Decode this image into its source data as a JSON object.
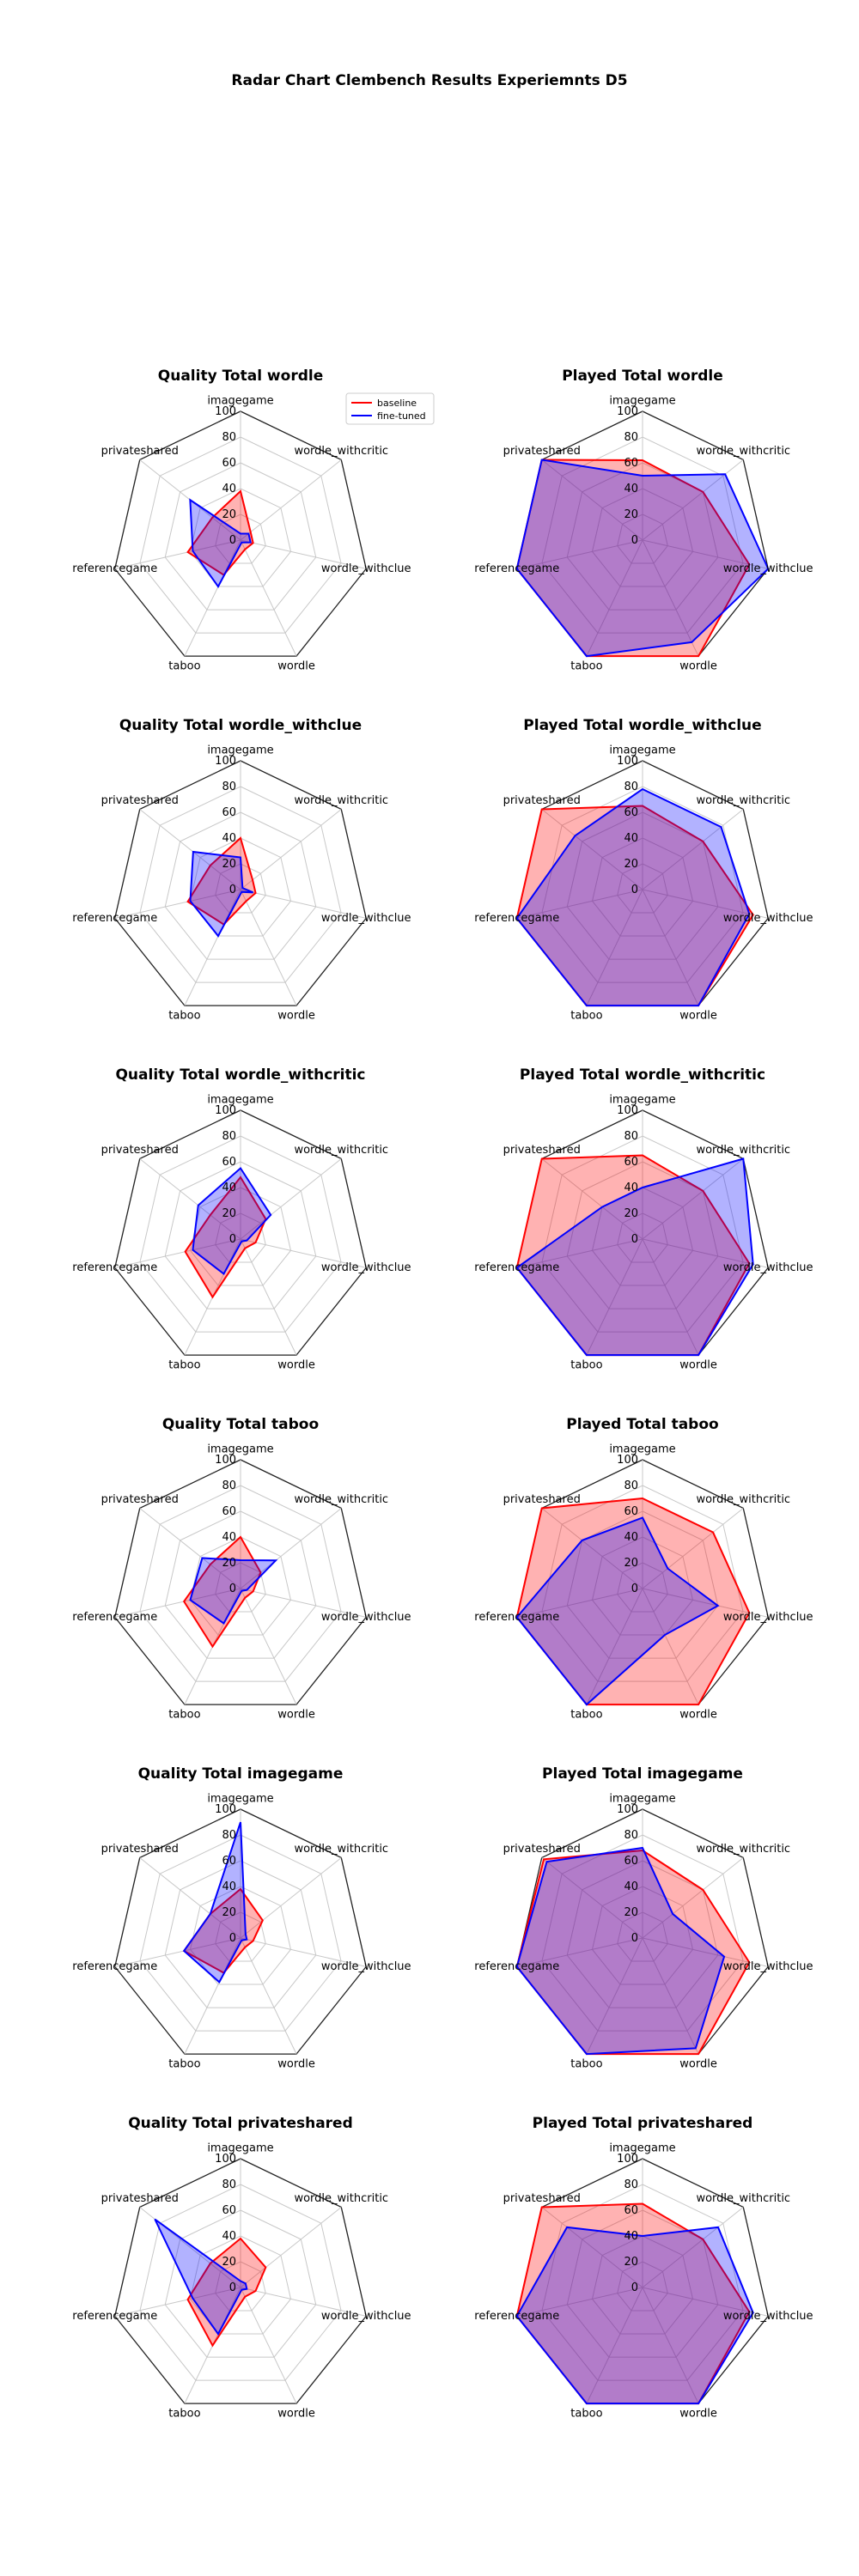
{
  "suptitle": "Radar Chart Clembench Results Experiemnts D5",
  "legend": [
    {
      "name": "baseline",
      "color": "#ff0000"
    },
    {
      "name": "fine-tuned",
      "color": "#0000ff"
    }
  ],
  "chart_data": [
    {
      "type": "radar",
      "title": "Quality Total wordle",
      "categories": [
        "imagegame",
        "wordle_withcritic",
        "wordle_withclue",
        "wordle",
        "taboo",
        "referencegame",
        "privateshared"
      ],
      "rlim": [
        0,
        100
      ],
      "ticks": [
        0,
        20,
        40,
        60,
        80,
        100
      ],
      "series": [
        {
          "name": "baseline",
          "values": [
            38,
            10,
            10,
            8,
            30,
            42,
            28
          ]
        },
        {
          "name": "fine-tuned",
          "values": [
            5,
            8,
            8,
            2,
            40,
            38,
            50
          ]
        }
      ]
    },
    {
      "type": "radar",
      "title": "Played Total wordle",
      "categories": [
        "imagegame",
        "wordle_withcritic",
        "wordle_withclue",
        "wordle",
        "taboo",
        "referencegame",
        "privateshared"
      ],
      "rlim": [
        0,
        100
      ],
      "ticks": [
        0,
        20,
        40,
        60,
        80,
        100
      ],
      "series": [
        {
          "name": "baseline",
          "values": [
            62,
            60,
            85,
            100,
            100,
            100,
            100
          ]
        },
        {
          "name": "fine-tuned",
          "values": [
            50,
            82,
            100,
            88,
            100,
            100,
            100
          ]
        }
      ]
    },
    {
      "type": "radar",
      "title": "Quality Total wordle_withclue",
      "categories": [
        "imagegame",
        "wordle_withcritic",
        "wordle_withclue",
        "wordle",
        "taboo",
        "referencegame",
        "privateshared"
      ],
      "rlim": [
        0,
        100
      ],
      "ticks": [
        0,
        20,
        40,
        60,
        80,
        100
      ],
      "series": [
        {
          "name": "baseline",
          "values": [
            40,
            12,
            12,
            10,
            30,
            42,
            30
          ]
        },
        {
          "name": "fine-tuned",
          "values": [
            25,
            2,
            10,
            2,
            40,
            40,
            47
          ]
        }
      ]
    },
    {
      "type": "radar",
      "title": "Played Total wordle_withclue",
      "categories": [
        "imagegame",
        "wordle_withcritic",
        "wordle_withclue",
        "wordle",
        "taboo",
        "referencegame",
        "privateshared"
      ],
      "rlim": [
        0,
        100
      ],
      "ticks": [
        0,
        20,
        40,
        60,
        80,
        100
      ],
      "series": [
        {
          "name": "baseline",
          "values": [
            65,
            60,
            88,
            100,
            100,
            100,
            100
          ]
        },
        {
          "name": "fine-tuned",
          "values": [
            78,
            78,
            85,
            100,
            100,
            100,
            67
          ]
        }
      ]
    },
    {
      "type": "radar",
      "title": "Quality Total wordle_withcritic",
      "categories": [
        "imagegame",
        "wordle_withcritic",
        "wordle_withclue",
        "wordle",
        "taboo",
        "referencegame",
        "privateshared"
      ],
      "rlim": [
        0,
        100
      ],
      "ticks": [
        0,
        20,
        40,
        60,
        80,
        100
      ],
      "series": [
        {
          "name": "baseline",
          "values": [
            48,
            25,
            12,
            8,
            50,
            44,
            30
          ]
        },
        {
          "name": "fine-tuned",
          "values": [
            55,
            30,
            5,
            2,
            30,
            38,
            42
          ]
        }
      ]
    },
    {
      "type": "radar",
      "title": "Played Total wordle_withcritic",
      "categories": [
        "imagegame",
        "wordle_withcritic",
        "wordle_withclue",
        "wordle",
        "taboo",
        "referencegame",
        "privateshared"
      ],
      "rlim": [
        0,
        100
      ],
      "ticks": [
        0,
        20,
        40,
        60,
        80,
        100
      ],
      "series": [
        {
          "name": "baseline",
          "values": [
            65,
            60,
            85,
            100,
            100,
            100,
            100
          ]
        },
        {
          "name": "fine-tuned",
          "values": [
            40,
            100,
            88,
            100,
            100,
            100,
            40
          ]
        }
      ]
    },
    {
      "type": "radar",
      "title": "Quality Total taboo",
      "categories": [
        "imagegame",
        "wordle_withcritic",
        "wordle_withclue",
        "wordle",
        "taboo",
        "referencegame",
        "privateshared"
      ],
      "rlim": [
        0,
        100
      ],
      "ticks": [
        0,
        20,
        40,
        60,
        80,
        100
      ],
      "series": [
        {
          "name": "baseline",
          "values": [
            40,
            20,
            10,
            8,
            50,
            45,
            30
          ]
        },
        {
          "name": "fine-tuned",
          "values": [
            22,
            35,
            5,
            2,
            30,
            40,
            38
          ]
        }
      ]
    },
    {
      "type": "radar",
      "title": "Played Total taboo",
      "categories": [
        "imagegame",
        "wordle_withcritic",
        "wordle_withclue",
        "wordle",
        "taboo",
        "referencegame",
        "privateshared"
      ],
      "rlim": [
        0,
        100
      ],
      "ticks": [
        0,
        20,
        40,
        60,
        80,
        100
      ],
      "series": [
        {
          "name": "baseline",
          "values": [
            70,
            70,
            85,
            100,
            100,
            100,
            100
          ]
        },
        {
          "name": "fine-tuned",
          "values": [
            55,
            25,
            60,
            40,
            100,
            100,
            60
          ]
        }
      ]
    },
    {
      "type": "radar",
      "title": "Quality Total imagegame",
      "categories": [
        "imagegame",
        "wordle_withcritic",
        "wordle_withclue",
        "wordle",
        "taboo",
        "referencegame",
        "privateshared"
      ],
      "rlim": [
        0,
        100
      ],
      "ticks": [
        0,
        20,
        40,
        60,
        80,
        100
      ],
      "series": [
        {
          "name": "baseline",
          "values": [
            38,
            22,
            10,
            8,
            30,
            45,
            30
          ]
        },
        {
          "name": "fine-tuned",
          "values": [
            90,
            5,
            5,
            2,
            38,
            45,
            30
          ]
        }
      ]
    },
    {
      "type": "radar",
      "title": "Played Total imagegame",
      "categories": [
        "imagegame",
        "wordle_withcritic",
        "wordle_withclue",
        "wordle",
        "taboo",
        "referencegame",
        "privateshared"
      ],
      "rlim": [
        0,
        100
      ],
      "ticks": [
        0,
        20,
        40,
        60,
        80,
        100
      ],
      "series": [
        {
          "name": "baseline",
          "values": [
            68,
            60,
            85,
            100,
            100,
            100,
            98
          ]
        },
        {
          "name": "fine-tuned",
          "values": [
            70,
            30,
            65,
            95,
            100,
            100,
            95
          ]
        }
      ]
    },
    {
      "type": "radar",
      "title": "Quality Total privateshared",
      "categories": [
        "imagegame",
        "wordle_withcritic",
        "wordle_withclue",
        "wordle",
        "taboo",
        "referencegame",
        "privateshared"
      ],
      "rlim": [
        0,
        100
      ],
      "ticks": [
        0,
        20,
        40,
        60,
        80,
        100
      ],
      "series": [
        {
          "name": "baseline",
          "values": [
            38,
            25,
            12,
            8,
            50,
            42,
            30
          ]
        },
        {
          "name": "fine-tuned",
          "values": [
            5,
            5,
            5,
            2,
            40,
            38,
            85
          ]
        }
      ]
    },
    {
      "type": "radar",
      "title": "Played Total privateshared",
      "categories": [
        "imagegame",
        "wordle_withcritic",
        "wordle_withclue",
        "wordle",
        "taboo",
        "referencegame",
        "privateshared"
      ],
      "rlim": [
        0,
        100
      ],
      "ticks": [
        0,
        20,
        40,
        60,
        80,
        100
      ],
      "series": [
        {
          "name": "baseline",
          "values": [
            65,
            60,
            85,
            100,
            100,
            100,
            100
          ]
        },
        {
          "name": "fine-tuned",
          "values": [
            40,
            75,
            88,
            100,
            100,
            100,
            75
          ]
        }
      ]
    }
  ]
}
